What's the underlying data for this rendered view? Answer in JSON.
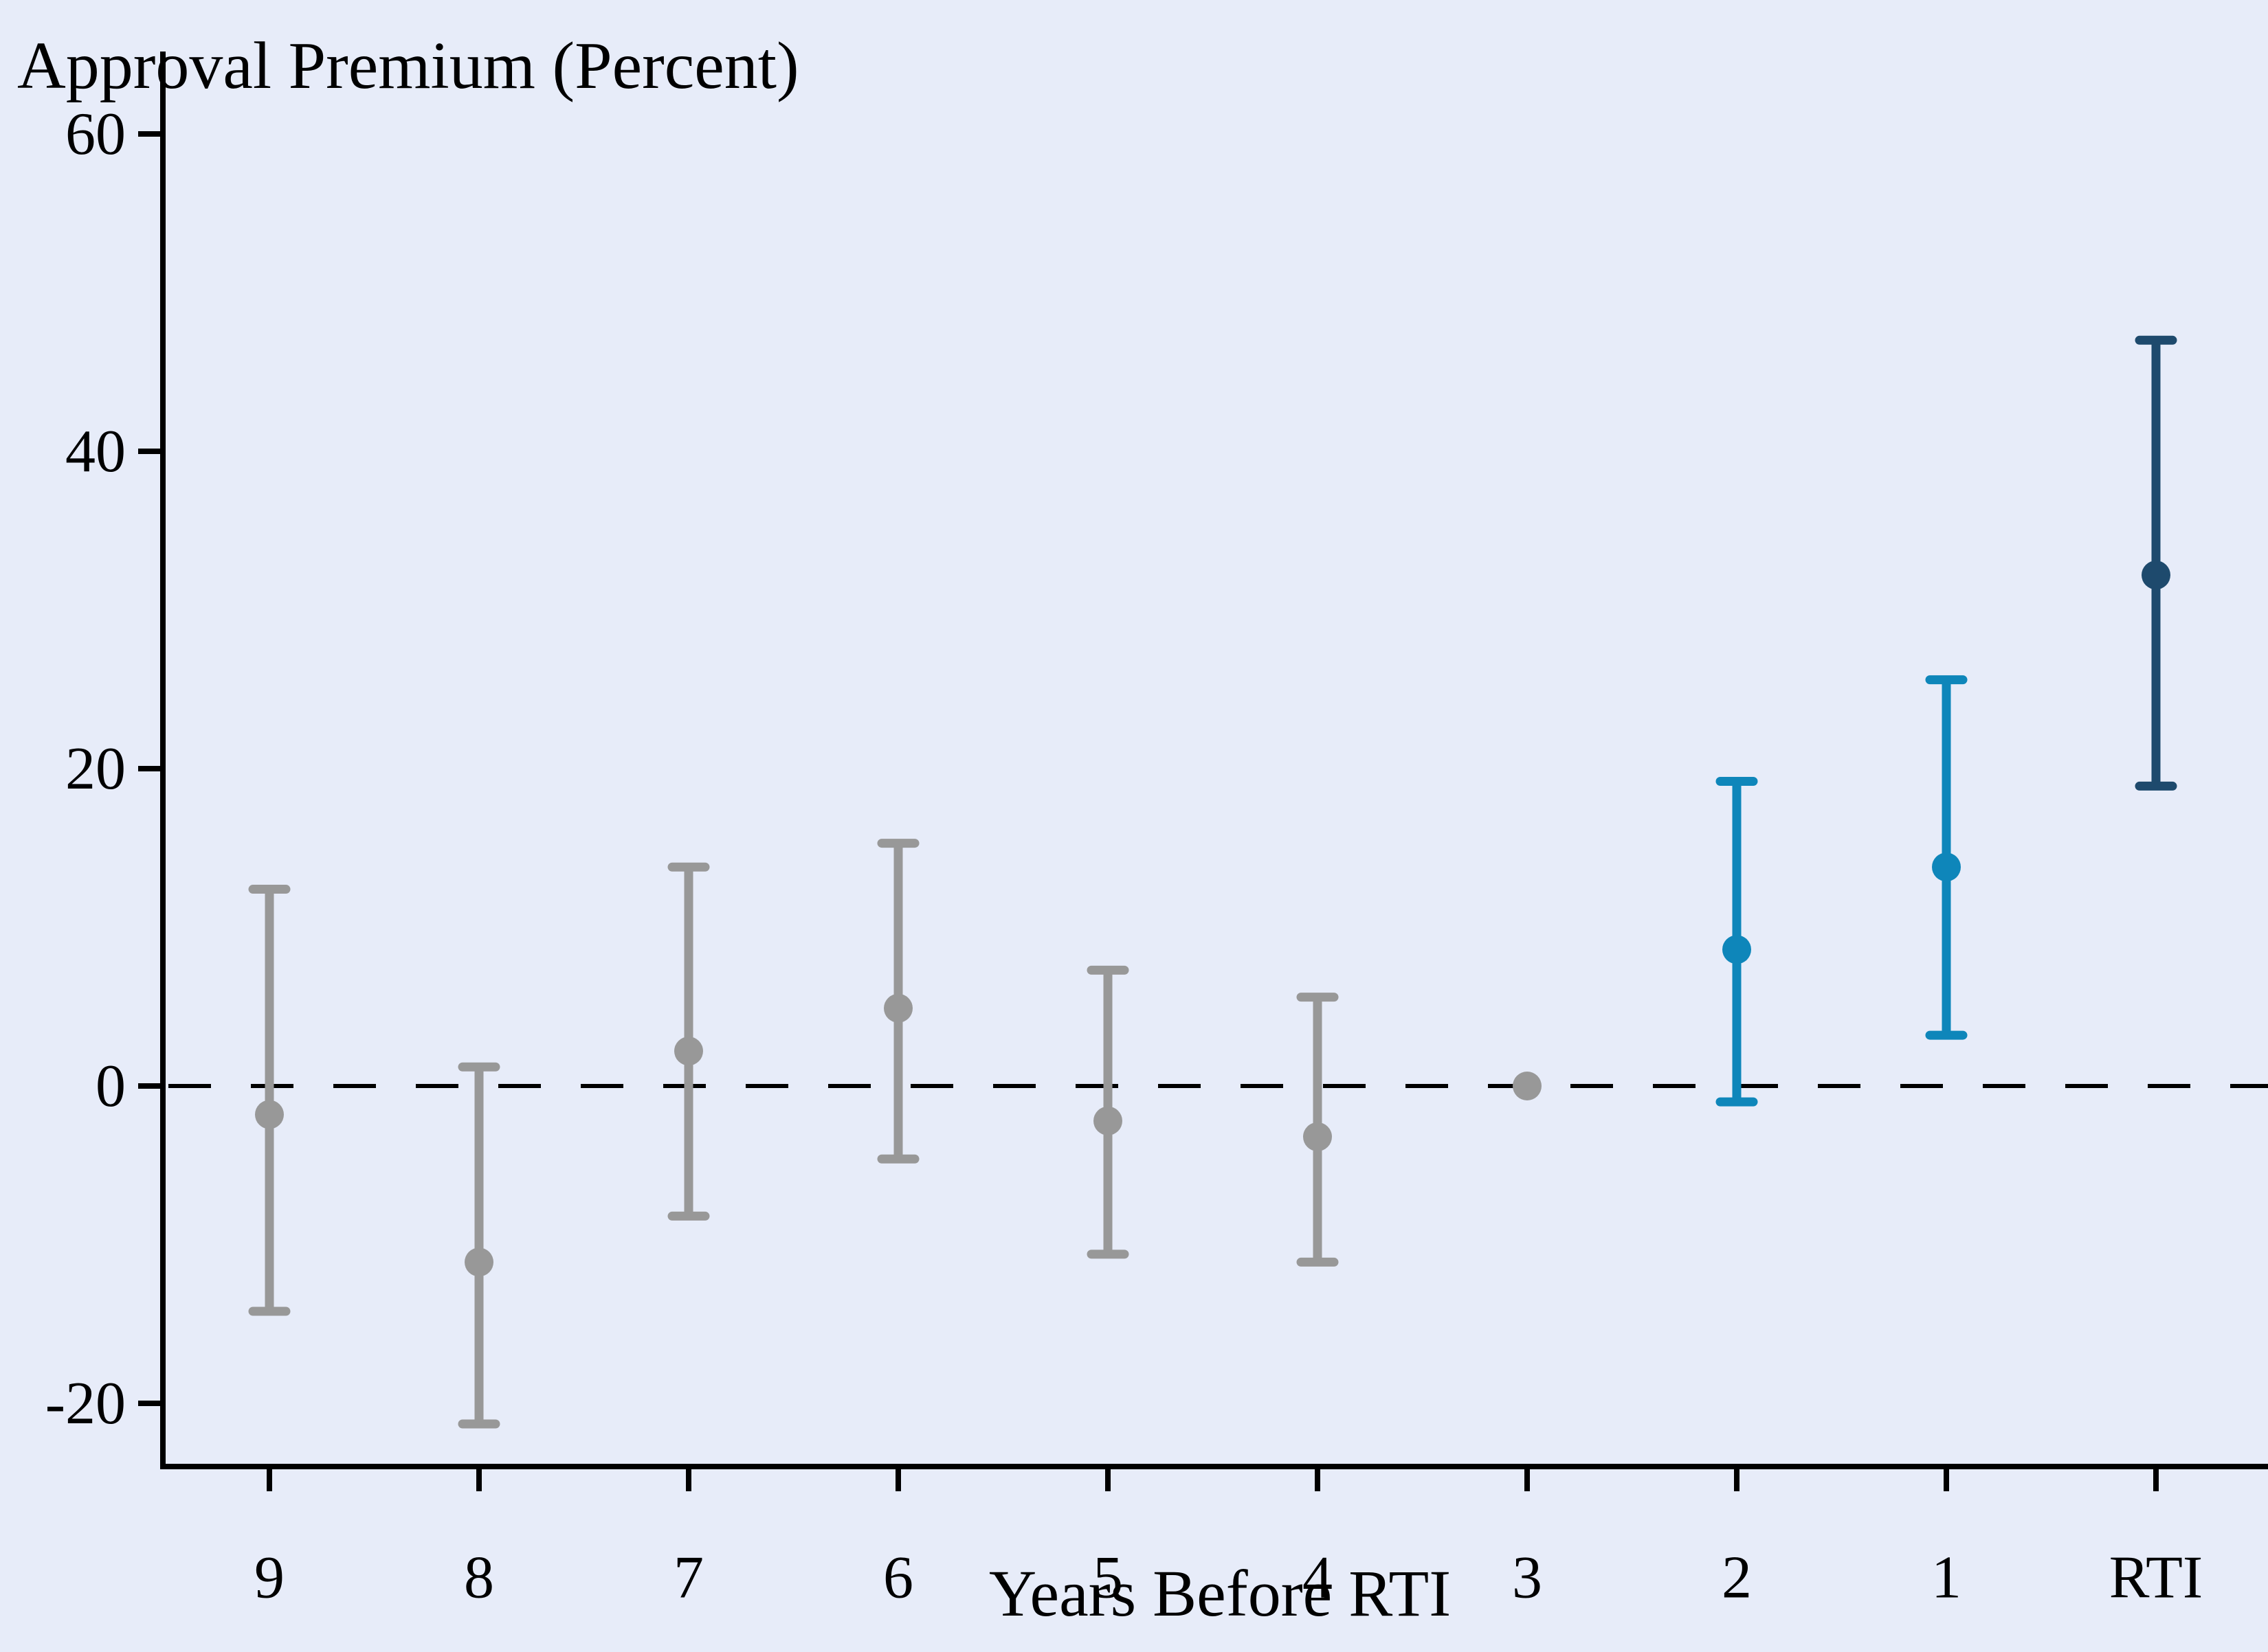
{
  "figure": {
    "title": "Approval Premium (Percent)",
    "x_axis_label": "Years Before RTI"
  },
  "colors": {
    "background": "#e7ecf9",
    "axis": "#000000",
    "zero_line": "#000000",
    "groups": {
      "pre": "#989898",
      "reference": "#989898",
      "recent": "#0e86ba",
      "rti": "#1e4a6d"
    }
  },
  "chart_data": {
    "type": "scatter",
    "subtype": "point-estimates-with-95ci-error-bars",
    "title": "Approval Premium (Percent)",
    "xlabel": "Years Before RTI",
    "ylabel": "",
    "ylim": [
      -24,
      65
    ],
    "yticks": [
      60,
      40,
      20,
      0,
      -20
    ],
    "zero_reference_line": 0,
    "grid": false,
    "legend": "none",
    "categories": [
      "9",
      "8",
      "7",
      "6",
      "5",
      "4",
      "3",
      "2",
      "1",
      "RTI"
    ],
    "points": [
      {
        "x_label": "9",
        "estimate": -1.8,
        "ci_low": -14.2,
        "ci_high": 12.4,
        "group": "pre"
      },
      {
        "x_label": "8",
        "estimate": -11.1,
        "ci_low": -21.3,
        "ci_high": 1.2,
        "group": "pre"
      },
      {
        "x_label": "7",
        "estimate": 2.2,
        "ci_low": -8.2,
        "ci_high": 13.8,
        "group": "pre"
      },
      {
        "x_label": "6",
        "estimate": 4.9,
        "ci_low": -4.6,
        "ci_high": 15.3,
        "group": "pre"
      },
      {
        "x_label": "5",
        "estimate": -2.2,
        "ci_low": -10.6,
        "ci_high": 7.3,
        "group": "pre"
      },
      {
        "x_label": "4",
        "estimate": -3.2,
        "ci_low": -11.1,
        "ci_high": 5.6,
        "group": "pre"
      },
      {
        "x_label": "3",
        "estimate": 0.0,
        "ci_low": null,
        "ci_high": null,
        "group": "reference"
      },
      {
        "x_label": "2",
        "estimate": 8.6,
        "ci_low": -1.0,
        "ci_high": 19.2,
        "group": "recent"
      },
      {
        "x_label": "1",
        "estimate": 13.8,
        "ci_low": 3.2,
        "ci_high": 25.6,
        "group": "recent"
      },
      {
        "x_label": "RTI",
        "estimate": 32.2,
        "ci_low": 18.9,
        "ci_high": 47.0,
        "group": "rti"
      }
    ]
  }
}
